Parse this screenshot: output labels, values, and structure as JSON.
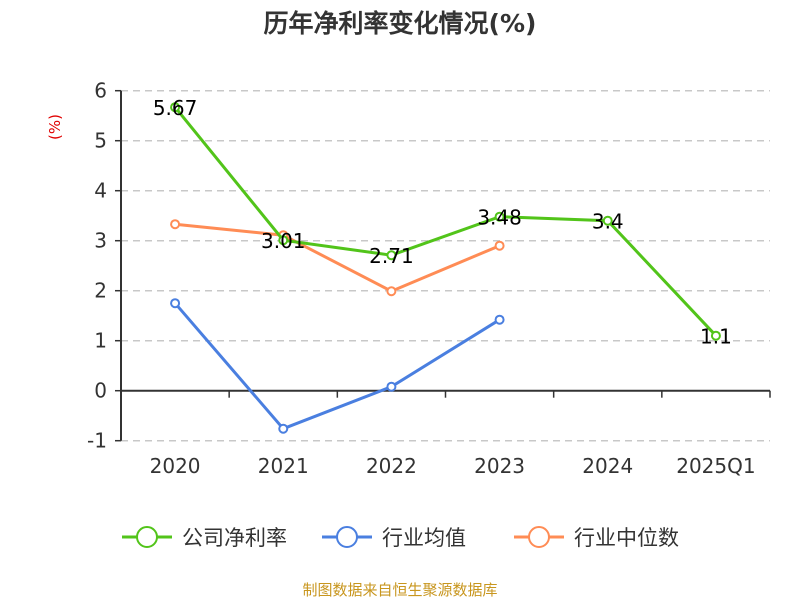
{
  "chart_data": {
    "type": "line",
    "title": "历年净利率变化情况(%)",
    "ylabel": "(%)",
    "xlabel": "",
    "ylim": [
      -1,
      6
    ],
    "yticks": [
      "-1",
      "0",
      "1",
      "2",
      "3",
      "4",
      "5",
      "6"
    ],
    "grid": true,
    "legend_position": "bottom",
    "categories": [
      "2020",
      "2021",
      "2022",
      "2023",
      "2024",
      "2025Q1"
    ],
    "series": [
      {
        "name": "公司净利率",
        "color": "#52c41a",
        "values": [
          5.67,
          3.01,
          2.71,
          3.48,
          3.4,
          1.1
        ],
        "labels": [
          "5.67",
          "3.01",
          "2.71",
          "3.48",
          "3.4",
          "1.1"
        ]
      },
      {
        "name": "行业均值",
        "color": "#4a7fe0",
        "values": [
          1.75,
          -0.76,
          0.08,
          1.42,
          null,
          null
        ]
      },
      {
        "name": "行业中位数",
        "color": "#ff8c55",
        "values": [
          3.33,
          3.11,
          1.99,
          2.9,
          null,
          null
        ]
      }
    ],
    "source": "制图数据来自恒生聚源数据库"
  }
}
